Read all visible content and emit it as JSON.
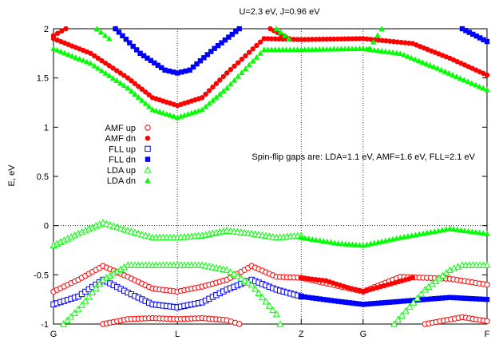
{
  "chart_data": {
    "type": "scatter",
    "title": "U=2.3 eV, J=0.96 eV",
    "ylabel": "E, eV",
    "xlabel": "",
    "ylim": [
      -1,
      2
    ],
    "yticks": [
      {
        "value": 2,
        "label": "2"
      },
      {
        "value": 1.5,
        "label": "1.5"
      },
      {
        "value": 1,
        "label": "1"
      },
      {
        "value": 0.5,
        "label": "0.5"
      },
      {
        "value": 0,
        "label": "0"
      },
      {
        "value": -0.5,
        "label": "-0.5"
      },
      {
        "value": -1,
        "label": "-1"
      }
    ],
    "xticks": [
      {
        "value": 0,
        "label": "G"
      },
      {
        "value": 1,
        "label": "L"
      },
      {
        "value": 2,
        "label": "Z"
      },
      {
        "value": 2.5,
        "label": "G"
      },
      {
        "value": 3.5,
        "label": "F"
      }
    ],
    "xlim": [
      0,
      3.5
    ],
    "grid": "vertical lines at high-symmetry points, dotted zero line",
    "legend_position": "left",
    "annotation": "Spin-flip gaps are: LDA=1.1 eV, AMF=1.6 eV, FLL=2.1 eV",
    "series": [
      {
        "name": "AMF up",
        "color": "#ff0000",
        "marker": "open-circle",
        "bands": [
          [
            [
              0,
              -0.67
            ],
            [
              0.2,
              -0.55
            ],
            [
              0.4,
              -0.41
            ],
            [
              0.6,
              -0.52
            ],
            [
              0.8,
              -0.64
            ],
            [
              1.0,
              -0.67
            ],
            [
              1.2,
              -0.62
            ],
            [
              1.4,
              -0.55
            ],
            [
              1.6,
              -0.41
            ],
            [
              1.8,
              -0.52
            ],
            [
              2.0,
              -0.53
            ],
            [
              2.5,
              -0.67
            ],
            [
              2.8,
              -0.52
            ],
            [
              3.2,
              -0.54
            ],
            [
              3.5,
              -0.6
            ]
          ],
          [
            [
              0.4,
              -1.0
            ],
            [
              0.6,
              -0.95
            ],
            [
              0.8,
              -0.94
            ],
            [
              1.0,
              -0.95
            ],
            [
              1.2,
              -0.94
            ],
            [
              1.4,
              -0.96
            ],
            [
              1.5,
              -1.0
            ]
          ],
          [
            [
              3.0,
              -1.0
            ],
            [
              3.3,
              -0.93
            ],
            [
              3.5,
              -0.97
            ]
          ]
        ]
      },
      {
        "name": "AMF dn",
        "color": "#ff0000",
        "marker": "filled-circle",
        "bands": [
          [
            [
              0,
              1.9
            ],
            [
              0.3,
              1.75
            ],
            [
              0.6,
              1.5
            ],
            [
              0.8,
              1.3
            ],
            [
              1.0,
              1.22
            ],
            [
              1.2,
              1.3
            ],
            [
              1.4,
              1.55
            ],
            [
              1.7,
              1.9
            ],
            [
              2.0,
              1.89
            ],
            [
              2.5,
              1.9
            ],
            [
              2.9,
              1.85
            ],
            [
              3.2,
              1.7
            ],
            [
              3.5,
              1.53
            ]
          ],
          [
            [
              2.0,
              -0.53
            ],
            [
              2.2,
              -0.56
            ],
            [
              2.4,
              -0.64
            ],
            [
              2.5,
              -0.67
            ],
            [
              2.7,
              -0.6
            ],
            [
              2.9,
              -0.53
            ]
          ],
          [
            [
              0,
              1.93
            ],
            [
              0.1,
              2.0
            ]
          ],
          [
            [
              1.75,
              2.0
            ],
            [
              1.9,
              1.9
            ]
          ]
        ]
      },
      {
        "name": "FLL up",
        "color": "#0000ff",
        "marker": "open-square",
        "bands": [
          [
            [
              0,
              -0.8
            ],
            [
              0.2,
              -0.72
            ],
            [
              0.4,
              -0.55
            ],
            [
              0.6,
              -0.68
            ],
            [
              0.8,
              -0.8
            ],
            [
              1.0,
              -0.83
            ],
            [
              1.2,
              -0.78
            ],
            [
              1.4,
              -0.65
            ],
            [
              1.6,
              -0.55
            ],
            [
              1.8,
              -0.65
            ],
            [
              2.0,
              -0.72
            ]
          ]
        ]
      },
      {
        "name": "FLL dn",
        "color": "#0000ff",
        "marker": "filled-square",
        "bands": [
          [
            [
              0.5,
              2.0
            ],
            [
              0.7,
              1.75
            ],
            [
              0.9,
              1.58
            ],
            [
              1.0,
              1.55
            ],
            [
              1.1,
              1.58
            ],
            [
              1.3,
              1.8
            ],
            [
              1.5,
              2.0
            ]
          ],
          [
            [
              2.0,
              -0.72
            ],
            [
              2.3,
              -0.77
            ],
            [
              2.5,
              -0.8
            ],
            [
              2.8,
              -0.77
            ],
            [
              3.2,
              -0.73
            ],
            [
              3.5,
              -0.75
            ]
          ],
          [
            [
              3.3,
              2.0
            ],
            [
              3.5,
              1.87
            ]
          ]
        ]
      },
      {
        "name": "LDA up",
        "color": "#00ff00",
        "marker": "open-triangle",
        "bands": [
          [
            [
              0.0,
              -0.2
            ],
            [
              0.2,
              -0.08
            ],
            [
              0.4,
              0.03
            ],
            [
              0.6,
              -0.05
            ],
            [
              0.8,
              -0.12
            ],
            [
              1.0,
              -0.12
            ],
            [
              1.2,
              -0.1
            ],
            [
              1.4,
              -0.05
            ],
            [
              1.6,
              -0.08
            ],
            [
              1.8,
              -0.12
            ],
            [
              2.0,
              -0.1
            ]
          ],
          [
            [
              0.08,
              -1.0
            ],
            [
              0.2,
              -0.85
            ],
            [
              0.4,
              -0.55
            ],
            [
              0.6,
              -0.4
            ],
            [
              0.8,
              -0.4
            ],
            [
              1.0,
              -0.4
            ],
            [
              1.2,
              -0.4
            ],
            [
              1.4,
              -0.45
            ],
            [
              1.6,
              -0.6
            ],
            [
              1.8,
              -0.9
            ],
            [
              1.83,
              -1.0
            ]
          ],
          [
            [
              2.75,
              -1.0
            ],
            [
              3.0,
              -0.65
            ],
            [
              3.2,
              -0.45
            ],
            [
              3.3,
              -0.4
            ],
            [
              3.5,
              -0.4
            ]
          ]
        ]
      },
      {
        "name": "LDA dn",
        "color": "#00ff00",
        "marker": "filled-triangle",
        "bands": [
          [
            [
              0,
              1.8
            ],
            [
              0.3,
              1.65
            ],
            [
              0.6,
              1.4
            ],
            [
              0.8,
              1.18
            ],
            [
              1.0,
              1.1
            ],
            [
              1.2,
              1.18
            ],
            [
              1.4,
              1.4
            ],
            [
              1.7,
              1.79
            ],
            [
              2.0,
              1.79
            ],
            [
              2.5,
              1.8
            ],
            [
              2.8,
              1.75
            ],
            [
              3.1,
              1.6
            ],
            [
              3.5,
              1.38
            ]
          ],
          [
            [
              2.0,
              -0.12
            ],
            [
              2.3,
              -0.18
            ],
            [
              2.5,
              -0.2
            ],
            [
              2.8,
              -0.12
            ],
            [
              3.2,
              -0.03
            ],
            [
              3.5,
              -0.08
            ]
          ],
          [
            [
              0.35,
              2.0
            ],
            [
              0.45,
              1.9
            ]
          ],
          [
            [
              1.8,
              2.0
            ],
            [
              1.9,
              1.9
            ]
          ],
          [
            [
              2.55,
              1.8
            ],
            [
              2.65,
              2.0
            ]
          ]
        ]
      }
    ]
  }
}
